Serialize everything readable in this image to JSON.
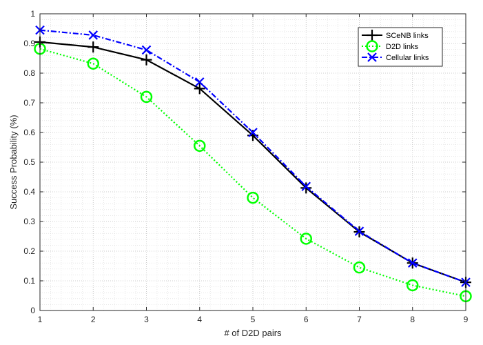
{
  "chart_data": {
    "type": "line",
    "xlabel": "# of D2D pairs",
    "ylabel": "Success Probability (%)",
    "x": [
      1,
      2,
      3,
      4,
      5,
      6,
      7,
      8,
      9
    ],
    "xlim": [
      1,
      9
    ],
    "ylim": [
      0,
      1
    ],
    "xticks": [
      "1",
      "2",
      "3",
      "4",
      "5",
      "6",
      "7",
      "8",
      "9"
    ],
    "yticks": [
      "0",
      "0.1",
      "0.2",
      "0.3",
      "0.4",
      "0.5",
      "0.6",
      "0.7",
      "0.8",
      "0.9",
      "1"
    ],
    "grid": "on (major dotted and minor dotted)",
    "legend_position": "top-right",
    "series": [
      {
        "name": "SCeNB links",
        "values": [
          0.905,
          0.888,
          0.845,
          0.748,
          0.59,
          0.413,
          0.265,
          0.16,
          0.095
        ],
        "color": "#000000",
        "line_style": "solid",
        "marker": "plus"
      },
      {
        "name": "D2D links",
        "values": [
          0.882,
          0.832,
          0.72,
          0.555,
          0.38,
          0.242,
          0.145,
          0.085,
          0.048
        ],
        "color": "#00ff00",
        "line_style": "dotted",
        "marker": "circle"
      },
      {
        "name": "Cellular links",
        "values": [
          0.945,
          0.928,
          0.878,
          0.77,
          0.6,
          0.418,
          0.267,
          0.16,
          0.095
        ],
        "color": "#0000ff",
        "line_style": "dash-dot",
        "marker": "x"
      }
    ]
  }
}
